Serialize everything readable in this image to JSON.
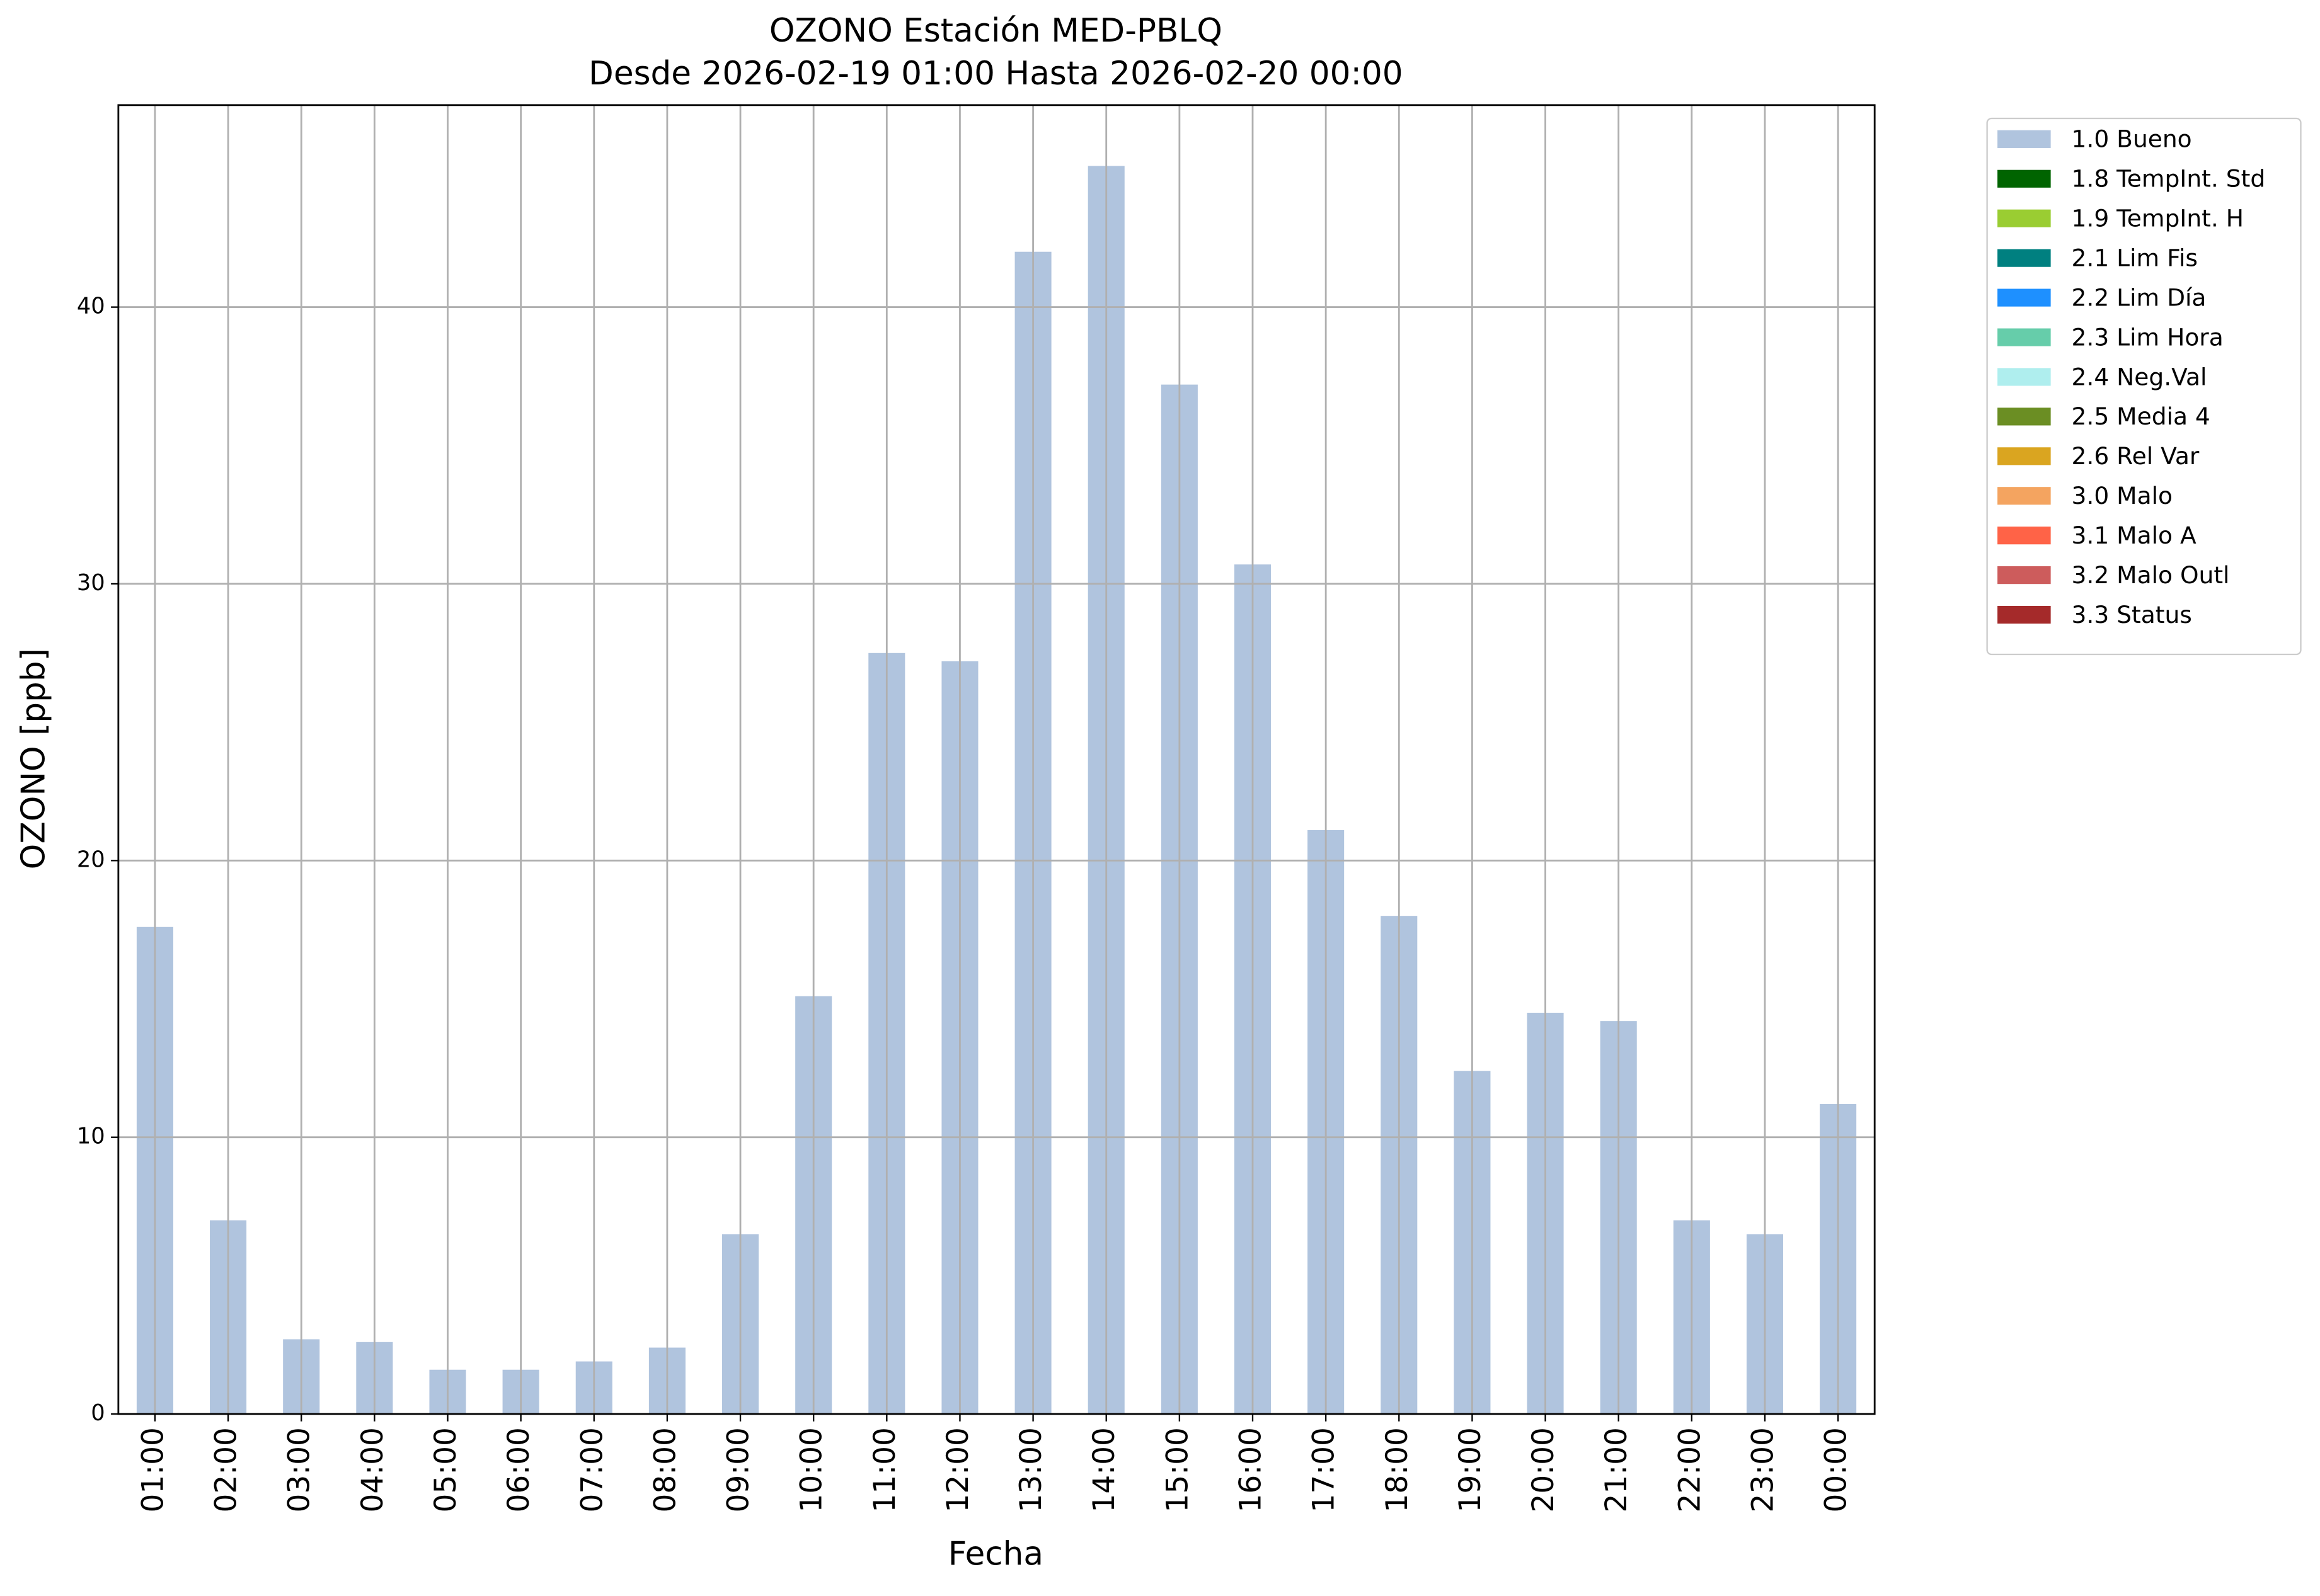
{
  "chart_data": {
    "type": "bar",
    "stacked": true,
    "title": "OZONO Estación MED-PBLQ",
    "subtitle": "Desde 2026-02-19 01:00 Hasta 2026-02-20 00:00",
    "x_label": "Fecha",
    "y_label": "OZONO [ppb]",
    "categories": [
      "01:00",
      "02:00",
      "03:00",
      "04:00",
      "05:00",
      "06:00",
      "07:00",
      "08:00",
      "09:00",
      "10:00",
      "11:00",
      "12:00",
      "13:00",
      "14:00",
      "15:00",
      "16:00",
      "17:00",
      "18:00",
      "19:00",
      "20:00",
      "21:00",
      "22:00",
      "23:00",
      "00:00"
    ],
    "series": [
      {
        "name": "1.0 Bueno",
        "color": "#b0c4de",
        "values": [
          17.6,
          7.0,
          2.7,
          2.6,
          1.6,
          1.6,
          1.9,
          2.4,
          6.5,
          15.1,
          27.5,
          27.2,
          42.0,
          45.1,
          37.2,
          30.7,
          21.1,
          18.0,
          12.4,
          14.5,
          14.2,
          7.0,
          6.5,
          11.2
        ]
      },
      {
        "name": "1.8 TempInt. Std",
        "color": "#006400",
        "values": [
          null,
          null,
          null,
          null,
          null,
          null,
          null,
          null,
          null,
          null,
          null,
          null,
          null,
          null,
          null,
          null,
          null,
          null,
          null,
          null,
          null,
          null,
          null,
          null
        ]
      },
      {
        "name": "1.9 TempInt. H",
        "color": "#9acd32",
        "values": [
          null,
          null,
          null,
          null,
          null,
          null,
          null,
          null,
          null,
          null,
          null,
          null,
          null,
          null,
          null,
          null,
          null,
          null,
          null,
          null,
          null,
          null,
          null,
          null
        ]
      },
      {
        "name": "2.1 Lim Fis",
        "color": "#008080",
        "values": [
          null,
          null,
          null,
          null,
          null,
          null,
          null,
          null,
          null,
          null,
          null,
          null,
          null,
          null,
          null,
          null,
          null,
          null,
          null,
          null,
          null,
          null,
          null,
          null
        ]
      },
      {
        "name": "2.2 Lim Día",
        "color": "#1e90ff",
        "values": [
          null,
          null,
          null,
          null,
          null,
          null,
          null,
          null,
          null,
          null,
          null,
          null,
          null,
          null,
          null,
          null,
          null,
          null,
          null,
          null,
          null,
          null,
          null,
          null
        ]
      },
      {
        "name": "2.3 Lim Hora",
        "color": "#66cdaa",
        "values": [
          null,
          null,
          null,
          null,
          null,
          null,
          null,
          null,
          null,
          null,
          null,
          null,
          null,
          null,
          null,
          null,
          null,
          null,
          null,
          null,
          null,
          null,
          null,
          null
        ]
      },
      {
        "name": "2.4 Neg.Val",
        "color": "#afeeee",
        "values": [
          null,
          null,
          null,
          null,
          null,
          null,
          null,
          null,
          null,
          null,
          null,
          null,
          null,
          null,
          null,
          null,
          null,
          null,
          null,
          null,
          null,
          null,
          null,
          null
        ]
      },
      {
        "name": "2.5 Media 4",
        "color": "#6b8e23",
        "values": [
          null,
          null,
          null,
          null,
          null,
          null,
          null,
          null,
          null,
          null,
          null,
          null,
          null,
          null,
          null,
          null,
          null,
          null,
          null,
          null,
          null,
          null,
          null,
          null
        ]
      },
      {
        "name": "2.6 Rel Var",
        "color": "#daa520",
        "values": [
          null,
          null,
          null,
          null,
          null,
          null,
          null,
          null,
          null,
          null,
          null,
          null,
          null,
          null,
          null,
          null,
          null,
          null,
          null,
          null,
          null,
          null,
          null,
          null
        ]
      },
      {
        "name": "3.0 Malo",
        "color": "#f4a460",
        "values": [
          null,
          null,
          null,
          null,
          null,
          null,
          null,
          null,
          null,
          null,
          null,
          null,
          null,
          null,
          null,
          null,
          null,
          null,
          null,
          null,
          null,
          null,
          null,
          null
        ]
      },
      {
        "name": "3.1 Malo A",
        "color": "#ff6347",
        "values": [
          null,
          null,
          null,
          null,
          null,
          null,
          null,
          null,
          null,
          null,
          null,
          null,
          null,
          null,
          null,
          null,
          null,
          null,
          null,
          null,
          null,
          null,
          null,
          null
        ]
      },
      {
        "name": "3.2 Malo Outl",
        "color": "#cd5c5c",
        "values": [
          null,
          null,
          null,
          null,
          null,
          null,
          null,
          null,
          null,
          null,
          null,
          null,
          null,
          null,
          null,
          null,
          null,
          null,
          null,
          null,
          null,
          null,
          null,
          null
        ]
      },
      {
        "name": "3.3 Status",
        "color": "#a52a2a",
        "values": [
          null,
          null,
          null,
          null,
          null,
          null,
          null,
          null,
          null,
          null,
          null,
          null,
          null,
          null,
          null,
          null,
          null,
          null,
          null,
          null,
          null,
          null,
          null,
          null
        ]
      }
    ],
    "ylim": [
      0,
      47.3
    ],
    "yticks": [
      0,
      10,
      20,
      30,
      40
    ],
    "grid": true,
    "legend": "outside-upper-right"
  }
}
